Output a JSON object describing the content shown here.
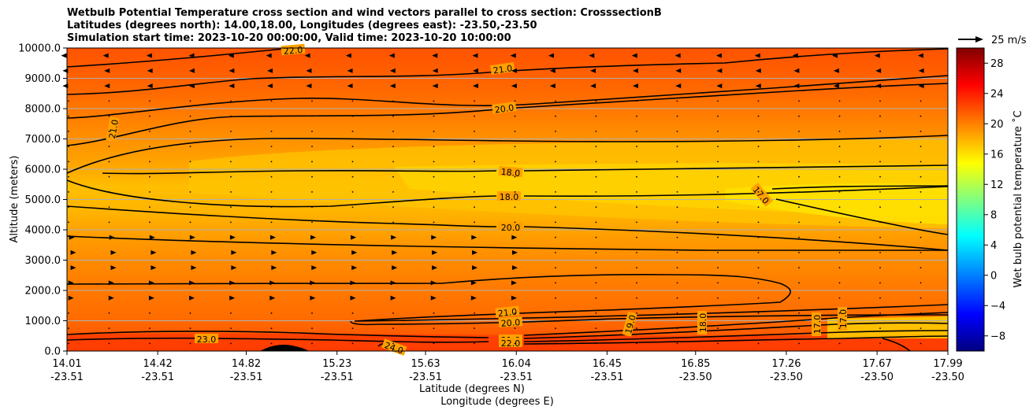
{
  "chart_data": {
    "type": "contour",
    "title_lines": [
      "Wetbulb Potential Temperature cross section and wind vectors parallel to cross section: CrosssectionB",
      "Latitudes (degrees north): 14.00,18.00, Longitudes (degrees east): -23.50,-23.50",
      "Simulation start time: 2023-10-20 00:00:00, Valid time: 2023-10-20 10:00:00"
    ],
    "ylabel": "Altitude (meters)",
    "xlabel_lat": "Latitude (degrees N)",
    "xlabel_lon": "Longitude (degrees E)",
    "ylim": [
      0,
      10000
    ],
    "y_ticks": [
      "0.0",
      "1000.0",
      "2000.0",
      "3000.0",
      "4000.0",
      "5000.0",
      "6000.0",
      "7000.0",
      "8000.0",
      "9000.0",
      "10000.0"
    ],
    "x_ticks": [
      {
        "lat": "14.01",
        "lon": "-23.51"
      },
      {
        "lat": "14.42",
        "lon": "-23.51"
      },
      {
        "lat": "14.82",
        "lon": "-23.51"
      },
      {
        "lat": "15.23",
        "lon": "-23.51"
      },
      {
        "lat": "15.63",
        "lon": "-23.51"
      },
      {
        "lat": "16.04",
        "lon": "-23.51"
      },
      {
        "lat": "16.45",
        "lon": "-23.51"
      },
      {
        "lat": "16.85",
        "lon": "-23.50"
      },
      {
        "lat": "17.26",
        "lon": "-23.50"
      },
      {
        "lat": "17.67",
        "lon": "-23.50"
      },
      {
        "lat": "17.99",
        "lon": "-23.50"
      }
    ],
    "colorbar": {
      "label": "Wet bulb potential temperature $^\\circ$C",
      "label_display": "Wet bulb potential temperature ˚C",
      "range": [
        -10,
        30
      ],
      "ticks": [
        "28",
        "24",
        "20",
        "16",
        "12",
        "8",
        "4",
        "0",
        "−4",
        "−8"
      ],
      "tick_values": [
        28,
        24,
        20,
        16,
        12,
        8,
        4,
        0,
        -4,
        -8
      ]
    },
    "quiver_key": "25 m/s",
    "contour_labels": [
      "22.0",
      "21.0",
      "21.0",
      "20.0",
      "18.0",
      "18.0",
      "17.0",
      "20.0",
      "21.0",
      "20.0",
      "23.0",
      "24.0",
      "21.0",
      "22.0",
      "19.0",
      "18.0",
      "17.0",
      "17.0"
    ],
    "wind_rows_eastward_m_per_s": [
      {
        "alt": 9500,
        "u": -10
      },
      {
        "alt": 9000,
        "u": -8
      },
      {
        "alt": 3500,
        "u": 8
      },
      {
        "alt": 3000,
        "u": 10
      },
      {
        "alt": 2500,
        "u": 10
      },
      {
        "alt": 2000,
        "u": 7
      }
    ]
  }
}
